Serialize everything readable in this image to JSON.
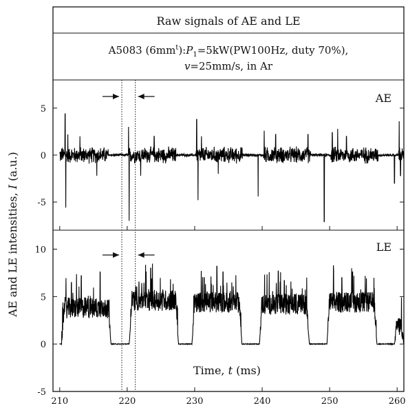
{
  "header": {
    "title": "Raw signals of AE and LE",
    "subtitle_line1_a": "A5083 (6mm",
    "subtitle_line1_sup": "t",
    "subtitle_line1_b": "):",
    "subtitle_line1_p": "P",
    "subtitle_line1_psub": "1",
    "subtitle_line1_c": "=5kW(PW100Hz, duty 70%),",
    "subtitle_line2_v": "v",
    "subtitle_line2_rest": "=25mm/s, in Ar"
  },
  "chart_data": {
    "type": "line",
    "xlabel_prefix": "Time, ",
    "xlabel_var": "t",
    "xlabel_unit": " (ms)",
    "ylabel_prefix": "AE and LE intensities, ",
    "ylabel_var": "I",
    "ylabel_unit": " (a.u.)",
    "x_ticks": [
      "210",
      "220",
      "230",
      "240",
      "250",
      "260"
    ],
    "xlim": [
      209,
      261
    ],
    "markers_x": [
      219.2,
      221.2
    ],
    "panels": [
      {
        "name": "AE",
        "ylim": [
          -8,
          8
        ],
        "y_ticks": [
          "5",
          "0",
          "-5"
        ],
        "y_tick_values": [
          5,
          0,
          -5
        ],
        "laser_on": [
          [
            210,
            217.2
          ],
          [
            220.2,
            227.2
          ],
          [
            230.2,
            237.2
          ],
          [
            240.2,
            247.2
          ],
          [
            250.2,
            257.2
          ],
          [
            260.2,
            261
          ]
        ],
        "noise_on": 1.0,
        "noise_off": 0.18,
        "spikes": [
          [
            210.8,
            4.4
          ],
          [
            210.9,
            -5.6
          ],
          [
            211.2,
            2.2
          ],
          [
            213.0,
            2.0
          ],
          [
            215.5,
            -2.2
          ],
          [
            220.3,
            -7.0
          ],
          [
            220.2,
            3.0
          ],
          [
            222.0,
            -2.2
          ],
          [
            224.0,
            2.0
          ],
          [
            230.3,
            3.8
          ],
          [
            230.5,
            -4.8
          ],
          [
            231.0,
            2.0
          ],
          [
            233.5,
            -2.0
          ],
          [
            239.4,
            -4.4
          ],
          [
            240.3,
            2.6
          ],
          [
            242.0,
            2.2
          ],
          [
            246.8,
            2.2
          ],
          [
            249.2,
            -7.1
          ],
          [
            250.4,
            2.4
          ],
          [
            251.2,
            2.8
          ],
          [
            252.5,
            2.0
          ],
          [
            259.6,
            -3.0
          ],
          [
            260.3,
            3.6
          ],
          [
            260.5,
            -2.2
          ]
        ]
      },
      {
        "name": "LE",
        "ylim": [
          -5,
          12
        ],
        "y_ticks": [
          "10",
          "5",
          "0",
          "-5"
        ],
        "y_tick_values": [
          10,
          5,
          0,
          -5
        ],
        "laser_on": [
          [
            210.3,
            217.6
          ],
          [
            220.3,
            227.6
          ],
          [
            229.6,
            237.0
          ],
          [
            239.6,
            247.0
          ],
          [
            249.6,
            257.0
          ],
          [
            259.6,
            261
          ]
        ],
        "plateau": [
          3.8,
          4.6,
          4.4,
          4.2,
          4.4,
          1.9
        ],
        "peaks": [
          [
            213.2,
            7.2
          ],
          [
            216.0,
            7.6
          ],
          [
            222.8,
            7.6
          ],
          [
            223.5,
            8.0
          ],
          [
            231.4,
            7.0
          ],
          [
            233.3,
            8.2
          ],
          [
            234.2,
            7.6
          ],
          [
            242.4,
            7.7
          ],
          [
            243.3,
            6.7
          ],
          [
            248.0,
            7.0
          ],
          [
            251.8,
            7.0
          ],
          [
            253.4,
            7.6
          ]
        ]
      }
    ]
  }
}
